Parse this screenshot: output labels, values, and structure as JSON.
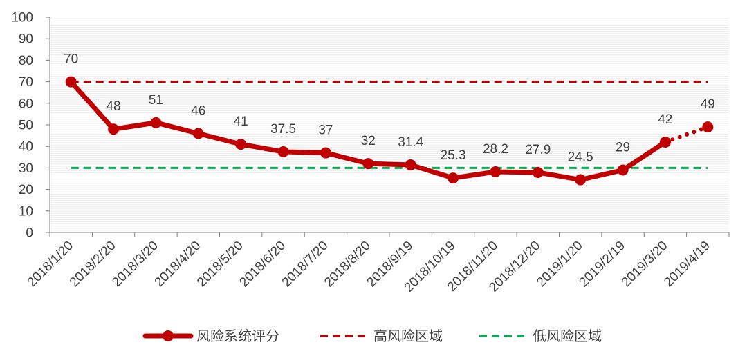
{
  "chart_data": {
    "type": "line",
    "x": [
      "2018/1/20",
      "2018/2/20",
      "2018/3/20",
      "2018/4/20",
      "2018/5/20",
      "2018/6/20",
      "2018/7/20",
      "2018/8/20",
      "2018/9/19",
      "2018/10/19",
      "2018/11/20",
      "2018/12/20",
      "2019/1/20",
      "2019/2/19",
      "2019/3/20",
      "2019/4/19"
    ],
    "series": [
      {
        "name": "风险系统评分",
        "color": "#c00000",
        "style": "solid-with-markers",
        "values": [
          70,
          48,
          51,
          46,
          41,
          37.5,
          37,
          32,
          31.4,
          25.3,
          28.2,
          27.9,
          24.5,
          29,
          42,
          49
        ],
        "labels": [
          "70",
          "48",
          "51",
          "46",
          "41",
          "37.5",
          "37",
          "32",
          "31.4",
          "25.3",
          "28.2",
          "27.9",
          "24.5",
          "29",
          "42",
          "49"
        ],
        "last_segment_dotted": true
      },
      {
        "name": "高风险区域",
        "color": "#c00000",
        "style": "dashed",
        "value": 70
      },
      {
        "name": "低风险区域",
        "color": "#00b050",
        "style": "dashed",
        "value": 30
      }
    ],
    "ylim": [
      0,
      100
    ],
    "yticks": [
      "0",
      "10",
      "20",
      "30",
      "40",
      "50",
      "60",
      "70",
      "80",
      "90",
      "100"
    ],
    "grid": "horizontal-fine-striped",
    "legend_position": "bottom"
  }
}
